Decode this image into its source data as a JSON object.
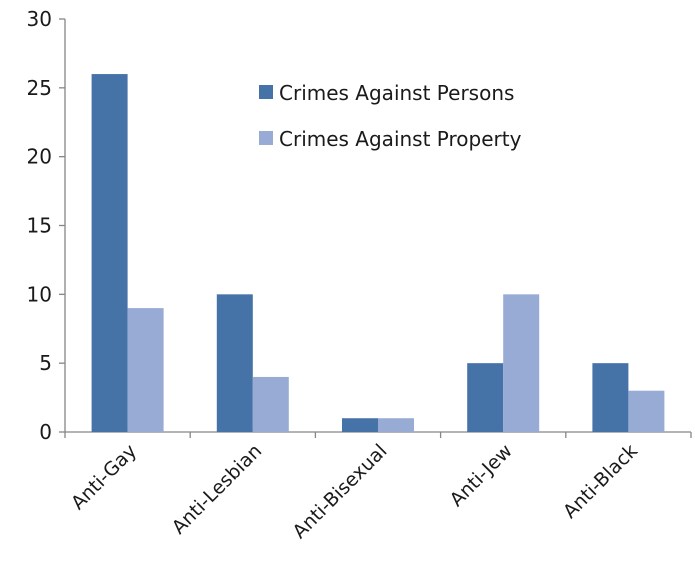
{
  "chart_data": {
    "type": "bar",
    "categories": [
      "Anti-Gay",
      "Anti-Lesbian",
      "Anti-Bisexual",
      "Anti-Jew",
      "Anti-Black"
    ],
    "series": [
      {
        "name": "Crimes Against Persons",
        "values": [
          26,
          10,
          1,
          5,
          5
        ],
        "color": "#4572a7"
      },
      {
        "name": "Crimes Against Property",
        "values": [
          9,
          4,
          1,
          10,
          3
        ],
        "color": "#97abd5"
      }
    ],
    "yticks": [
      "0",
      "5",
      "10",
      "15",
      "20",
      "25",
      "30"
    ],
    "ylim": [
      0,
      30
    ],
    "title": "",
    "xlabel": "",
    "ylabel": "",
    "grid": false,
    "legend_position": "top-right"
  }
}
